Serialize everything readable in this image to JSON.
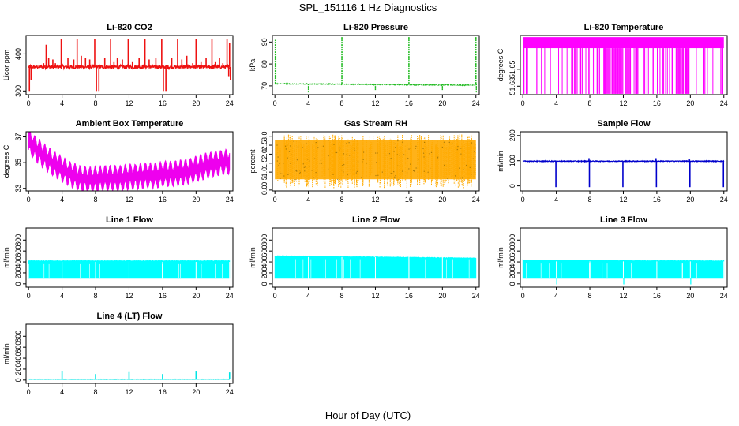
{
  "figure": {
    "title": "SPL_151116  1 Hz Diagnostics",
    "xlabel": "Hour of Day (UTC)"
  },
  "chart_data": [
    {
      "id": "co2",
      "type": "line",
      "title": "Li-820 CO2",
      "ylabel": "Licor ppm",
      "color": "#ee1111",
      "x_ticks": [
        0,
        4,
        8,
        12,
        16,
        20,
        24
      ],
      "y_ticks": [
        300,
        400
      ],
      "xlim": [
        -0.3,
        24.4
      ],
      "ylim": [
        290,
        450
      ],
      "baseline": 365,
      "noise": 5,
      "spikes": [
        [
          1.8,
          375
        ],
        [
          2.1,
          425
        ],
        [
          2.4,
          390
        ],
        [
          2.9,
          385
        ],
        [
          3.2,
          375
        ],
        [
          3.9,
          440
        ],
        [
          4.7,
          390
        ],
        [
          5.4,
          385
        ],
        [
          5.8,
          440
        ],
        [
          6.3,
          395
        ],
        [
          6.8,
          390
        ],
        [
          7.3,
          385
        ],
        [
          7.9,
          440
        ],
        [
          8.4,
          300
        ],
        [
          9.1,
          390
        ],
        [
          9.8,
          440
        ],
        [
          10.2,
          380
        ],
        [
          10.6,
          390
        ],
        [
          11.2,
          385
        ],
        [
          11.9,
          440
        ],
        [
          12.4,
          380
        ],
        [
          13.2,
          390
        ],
        [
          13.9,
          440
        ],
        [
          14.4,
          385
        ],
        [
          15.2,
          390
        ],
        [
          15.9,
          440
        ],
        [
          16.4,
          300
        ],
        [
          17.1,
          390
        ],
        [
          17.8,
          440
        ],
        [
          18.3,
          385
        ],
        [
          18.9,
          395
        ],
        [
          19.6,
          375
        ],
        [
          20.0,
          440
        ],
        [
          20.6,
          380
        ],
        [
          21.2,
          390
        ],
        [
          21.9,
          440
        ],
        [
          22.3,
          380
        ],
        [
          22.8,
          390
        ],
        [
          23.2,
          375
        ],
        [
          23.7,
          440
        ],
        [
          23.9,
          340
        ],
        [
          24.0,
          430
        ]
      ],
      "dips": [
        [
          0.1,
          300
        ],
        [
          0.3,
          330
        ],
        [
          8.1,
          300
        ],
        [
          16.1,
          300
        ],
        [
          24.1,
          330
        ]
      ]
    },
    {
      "id": "pressure",
      "type": "line",
      "title": "Li-820 Pressure",
      "ylabel": "kPa",
      "color": "#22bb22",
      "x_ticks": [
        0,
        4,
        8,
        12,
        16,
        20,
        24
      ],
      "y_ticks": [
        70,
        80,
        90
      ],
      "xlim": [
        -0.3,
        24.4
      ],
      "ylim": [
        66,
        93
      ],
      "baseline_start": 71,
      "baseline_end": 70.3,
      "noise": 0.15,
      "spikes": [
        [
          0.05,
          91
        ],
        [
          0.1,
          85
        ],
        [
          8.0,
          92.5
        ],
        [
          16.0,
          92.5
        ],
        [
          24.0,
          92.5
        ]
      ],
      "dips": [
        [
          4.0,
          67
        ],
        [
          12.0,
          68
        ],
        [
          20.0,
          68
        ],
        [
          24.05,
          67
        ]
      ]
    },
    {
      "id": "licor_temp",
      "type": "band",
      "title": "Li-820 Temperature",
      "ylabel": "degrees C",
      "color": "#ff00ff",
      "x_ticks": [
        0,
        4,
        8,
        12,
        16,
        20,
        24
      ],
      "y_ticks": [
        51.65,
        51.63
      ],
      "y_tick_labels": [
        "51.65",
        "51.63"
      ],
      "xlim": [
        -0.3,
        24.4
      ],
      "ylim": [
        51.62,
        51.69
      ],
      "band_low": 51.675,
      "band_high": 51.688,
      "drop_to": 51.621
    },
    {
      "id": "ambient_temp",
      "type": "band",
      "title": "Ambient Box Temperature",
      "ylabel": "degrees C",
      "color": "#ee00ee",
      "x_ticks": [
        0,
        4,
        8,
        12,
        16,
        20,
        24
      ],
      "y_ticks": [
        33,
        35,
        37
      ],
      "xlim": [
        -0.3,
        24.4
      ],
      "ylim": [
        32.8,
        37.4
      ],
      "curve_x": [
        0,
        1,
        2,
        3,
        4,
        5,
        6,
        7,
        8,
        9,
        10,
        11,
        12,
        13,
        14,
        15,
        16,
        17,
        18,
        19,
        20,
        21,
        22,
        23,
        24
      ],
      "curve_y": [
        36.6,
        36.0,
        35.4,
        34.9,
        34.5,
        34.1,
        33.8,
        33.7,
        33.7,
        33.8,
        33.8,
        33.8,
        33.9,
        33.9,
        34.0,
        34.0,
        34.1,
        34.1,
        34.2,
        34.3,
        34.5,
        34.7,
        34.9,
        35.0,
        35.1
      ],
      "half_width": 0.55,
      "osc_amp": 0.35,
      "osc_period": 0.6
    },
    {
      "id": "rh",
      "type": "band",
      "title": "Gas Stream RH",
      "ylabel": "percent",
      "color": "#ffaa00",
      "x_ticks": [
        0,
        4,
        8,
        12,
        16,
        20,
        24
      ],
      "y_ticks": [
        0.0,
        0.5,
        1.0,
        1.5,
        2.0,
        2.5,
        3.0
      ],
      "y_tick_labels": [
        "0.0",
        "0.5",
        "1.0",
        "1.5",
        "2.0",
        "2.5",
        "3.0"
      ],
      "xlim": [
        -0.3,
        24.4
      ],
      "ylim": [
        -0.05,
        3.25
      ],
      "band_low": 0.6,
      "band_high": 2.8,
      "noise_low": 0.1,
      "noise_high": 3.1
    },
    {
      "id": "sample_flow",
      "type": "line",
      "title": "Sample Flow",
      "ylabel": "ml/min",
      "color": "#0000cc",
      "x_ticks": [
        0,
        4,
        8,
        12,
        16,
        20,
        24
      ],
      "y_ticks": [
        0,
        100,
        200
      ],
      "xlim": [
        -0.3,
        24.4
      ],
      "ylim": [
        -20,
        215
      ],
      "baseline": 98,
      "noise": 1.5,
      "dips": [
        [
          3.95,
          -5
        ],
        [
          7.95,
          -5
        ],
        [
          11.95,
          -5
        ],
        [
          15.95,
          -5
        ],
        [
          19.95,
          -5
        ],
        [
          23.95,
          -5
        ]
      ],
      "spikes": [
        [
          7.9,
          110
        ],
        [
          15.9,
          110
        ],
        [
          19.9,
          105
        ]
      ]
    },
    {
      "id": "line1",
      "type": "band",
      "title": "Line 1 Flow",
      "ylabel": "ml/min",
      "color": "#00ffff",
      "x_ticks": [
        0,
        4,
        8,
        12,
        16,
        20,
        24
      ],
      "y_ticks": [
        0,
        200,
        400,
        600,
        800
      ],
      "xlim": [
        -0.3,
        24.4
      ],
      "ylim": [
        -60,
        1020
      ],
      "band_low": 100,
      "band_high": 420,
      "band_high_end": 420,
      "gaps": [
        4,
        8,
        12,
        16,
        20,
        24
      ]
    },
    {
      "id": "line2",
      "type": "band",
      "title": "Line 2 Flow",
      "ylabel": "ml/min",
      "color": "#00ffff",
      "x_ticks": [
        0,
        4,
        8,
        12,
        16,
        20,
        24
      ],
      "y_ticks": [
        0,
        200,
        400,
        600,
        800
      ],
      "xlim": [
        -0.3,
        24.4
      ],
      "ylim": [
        -60,
        1020
      ],
      "band_low": 100,
      "band_high": 510,
      "band_high_end": 470,
      "gaps": [
        4,
        8,
        12,
        16,
        20
      ]
    },
    {
      "id": "line3",
      "type": "band",
      "title": "Line 3 Flow",
      "ylabel": "ml/min",
      "color": "#00ffff",
      "x_ticks": [
        0,
        4,
        8,
        12,
        16,
        20,
        24
      ],
      "y_ticks": [
        0,
        200,
        400,
        600,
        800
      ],
      "xlim": [
        -0.3,
        24.4
      ],
      "ylim": [
        -60,
        1020
      ],
      "band_low": 100,
      "band_high": 430,
      "band_high_end": 420,
      "gaps": [
        4,
        8,
        12,
        16,
        20,
        24
      ],
      "dip_to": -10
    },
    {
      "id": "line4",
      "type": "line",
      "title": "Line 4 (LT) Flow",
      "ylabel": "ml/min",
      "color": "#00e5e5",
      "x_ticks": [
        0,
        4,
        8,
        12,
        16,
        20,
        24
      ],
      "y_ticks": [
        0,
        200,
        400,
        600,
        800
      ],
      "xlim": [
        -0.3,
        24.4
      ],
      "ylim": [
        -60,
        1020
      ],
      "baseline": 15,
      "noise": 3,
      "spikes": [
        [
          4.0,
          170
        ],
        [
          8.0,
          110
        ],
        [
          12.0,
          160
        ],
        [
          16.0,
          110
        ],
        [
          20.0,
          170
        ],
        [
          24.0,
          140
        ]
      ],
      "dips": []
    }
  ]
}
